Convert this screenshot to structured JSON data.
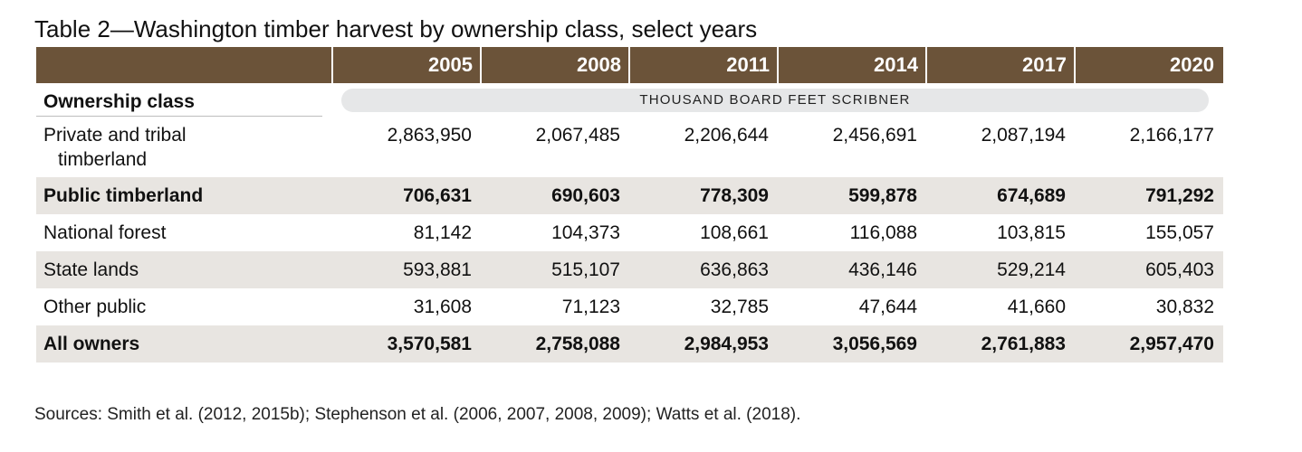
{
  "title": "Table 2—Washington timber harvest by ownership class, select years",
  "header": {
    "years": [
      "2005",
      "2008",
      "2011",
      "2014",
      "2017",
      "2020"
    ],
    "ownership_label": "Ownership class",
    "unit_label": "THOUSAND BOARD FEET SCRIBNER"
  },
  "rows": [
    {
      "label_line1": "Private and tribal",
      "label_line2": "timberland",
      "values": [
        "2,863,950",
        "2,067,485",
        "2,206,644",
        "2,456,691",
        "2,087,194",
        "2,166,177"
      ]
    },
    {
      "label": "Public timberland",
      "values": [
        "706,631",
        "690,603",
        "778,309",
        "599,878",
        "674,689",
        "791,292"
      ]
    },
    {
      "label": "National forest",
      "values": [
        "81,142",
        "104,373",
        "108,661",
        "116,088",
        "103,815",
        "155,057"
      ]
    },
    {
      "label": "State lands",
      "values": [
        "593,881",
        "515,107",
        "636,863",
        "436,146",
        "529,214",
        "605,403"
      ]
    },
    {
      "label": "Other public",
      "values": [
        "31,608",
        "71,123",
        "32,785",
        "47,644",
        "41,660",
        "30,832"
      ]
    },
    {
      "label": "All owners",
      "values": [
        "3,570,581",
        "2,758,088",
        "2,984,953",
        "3,056,569",
        "2,761,883",
        "2,957,470"
      ]
    }
  ],
  "sources": "Sources: Smith et al. (2012, 2015b); Stephenson et al. (2006, 2007, 2008, 2009); Watts et al. (2018)."
}
